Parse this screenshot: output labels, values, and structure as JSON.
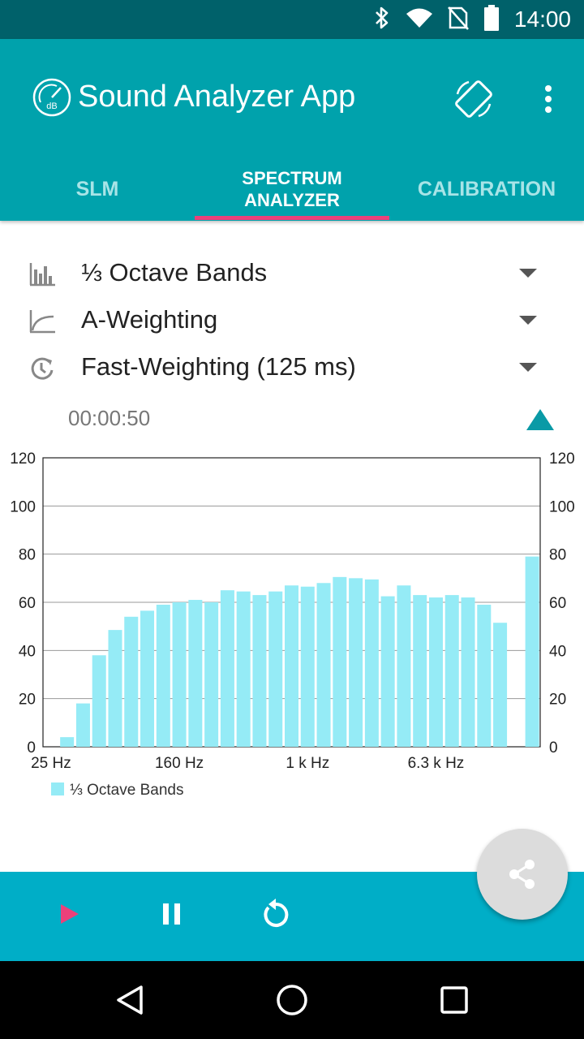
{
  "status_bar": {
    "time": "14:00"
  },
  "app_bar": {
    "title": "Sound Analyzer App",
    "logo_text": "dB"
  },
  "tabs": [
    {
      "label": "SLM"
    },
    {
      "label_line1": "SPECTRUM",
      "label_line2": "ANALYZER"
    },
    {
      "label": "CALIBRATION"
    }
  ],
  "settings": {
    "bands": "⅓ Octave Bands",
    "frequency_weighting": "A-Weighting",
    "time_weighting": "Fast-Weighting (125 ms)"
  },
  "elapsed_time": "00:00:50",
  "colors": {
    "primary": "#00a2ac",
    "accent": "#ec407a",
    "bar": "#95ebf6",
    "bottom_bar": "#00aec7"
  },
  "chart_data": {
    "type": "bar",
    "ylim": [
      0,
      120
    ],
    "y_ticks": [
      "0",
      "20",
      "40",
      "60",
      "80",
      "100",
      "120"
    ],
    "x_tick_labels": [
      {
        "label": "25 Hz",
        "band_index": 0
      },
      {
        "label": "160 Hz",
        "band_index": 8
      },
      {
        "label": "1 k Hz",
        "band_index": 16
      },
      {
        "label": "6.3 k Hz",
        "band_index": 24
      }
    ],
    "band_count": 31,
    "series": [
      {
        "name": "⅓ Octave Bands",
        "values": [
          0,
          4,
          18,
          38,
          48.5,
          54,
          56.5,
          59,
          60,
          61,
          60,
          65,
          64.5,
          63,
          64.5,
          67,
          66.5,
          68,
          70.5,
          70,
          69.5,
          62.5,
          67,
          63,
          62,
          63,
          62,
          59,
          51.5,
          0,
          79
        ]
      }
    ]
  }
}
